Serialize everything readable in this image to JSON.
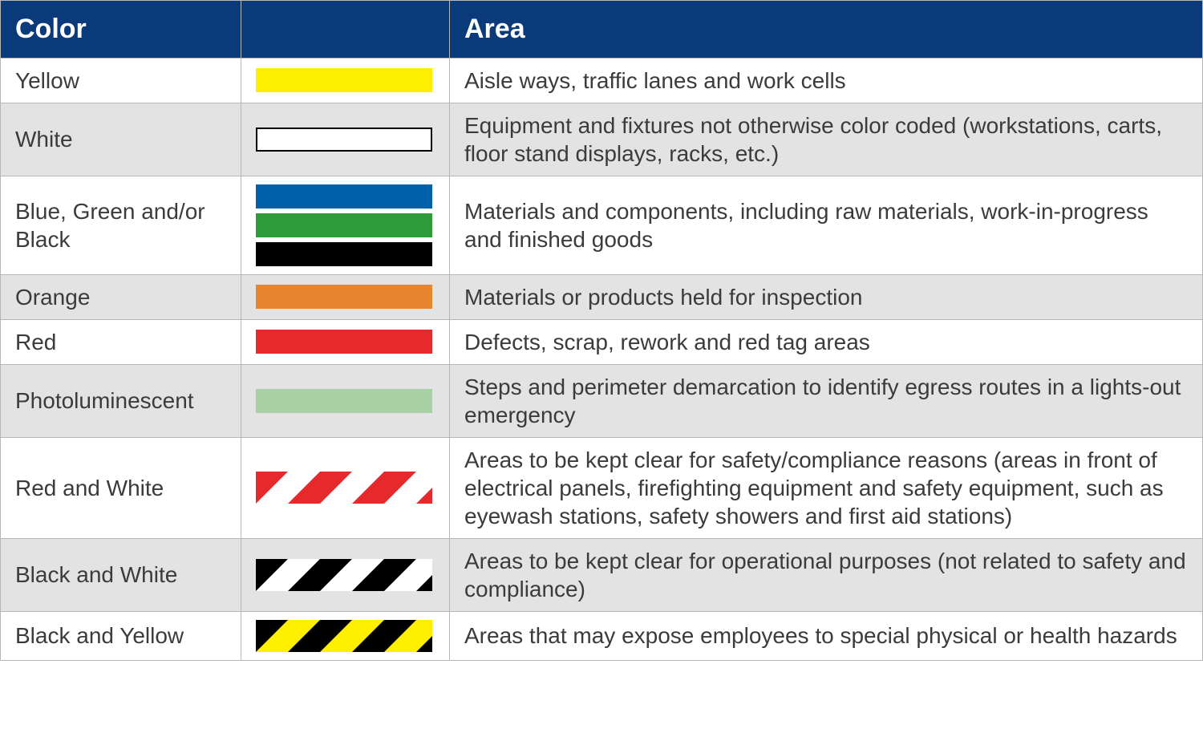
{
  "header": {
    "col_color": "Color",
    "col_swatch": "",
    "col_area": "Area",
    "bg": "#0a3a7a",
    "fg": "#ffffff",
    "fontsize": 34
  },
  "table": {
    "border_color": "#b6b6b6",
    "alt_row_bg": "#e3e3e3",
    "cell_fontsize": 28,
    "swatch_width": 220,
    "swatch_height": 30,
    "stripe_height": 40
  },
  "rows": [
    {
      "name": "Yellow",
      "swatch": {
        "type": "solid",
        "colors": [
          "#ffef00"
        ]
      },
      "area": "Aisle ways, traffic lanes and work cells",
      "alt": false
    },
    {
      "name": "White",
      "swatch": {
        "type": "solid",
        "colors": [
          "#ffffff"
        ],
        "border": true
      },
      "area": "Equipment and fixtures not otherwise color coded (workstations, carts, floor stand displays, racks, etc.)",
      "alt": true
    },
    {
      "name": "Blue, Green and/or Black",
      "swatch": {
        "type": "stack",
        "colors": [
          "#0060a9",
          "#2e9b3a",
          "#000000"
        ]
      },
      "area": "Materials and components, including raw materials, work-in-progress and finished goods",
      "alt": false
    },
    {
      "name": "Orange",
      "swatch": {
        "type": "solid",
        "colors": [
          "#e8862f"
        ]
      },
      "area": "Materials or products held for inspection",
      "alt": true
    },
    {
      "name": "Red",
      "swatch": {
        "type": "solid",
        "colors": [
          "#e7292b"
        ]
      },
      "area": "Defects, scrap, rework and red tag areas",
      "alt": false
    },
    {
      "name": "Photoluminescent",
      "swatch": {
        "type": "solid",
        "colors": [
          "#a9cfa4"
        ]
      },
      "area": "Steps and perimeter demarcation to identify egress routes in a lights-out emergency",
      "alt": true
    },
    {
      "name": "Red and White",
      "swatch": {
        "type": "stripe",
        "colors": [
          "#e7292b",
          "#ffffff"
        ]
      },
      "area": "Areas to be kept clear for safety/compliance reasons (areas in front of electrical panels, firefighting equipment and safety equipment, such as eyewash stations, safety showers and first aid stations)",
      "alt": false
    },
    {
      "name": "Black and White",
      "swatch": {
        "type": "stripe",
        "colors": [
          "#000000",
          "#ffffff"
        ]
      },
      "area": "Areas to be kept clear for operational purposes (not related to safety and compliance)",
      "alt": true
    },
    {
      "name": "Black and Yellow",
      "swatch": {
        "type": "stripe",
        "colors": [
          "#000000",
          "#ffef00"
        ]
      },
      "area": "Areas that may expose employees to special physical or health hazards",
      "alt": false
    }
  ]
}
